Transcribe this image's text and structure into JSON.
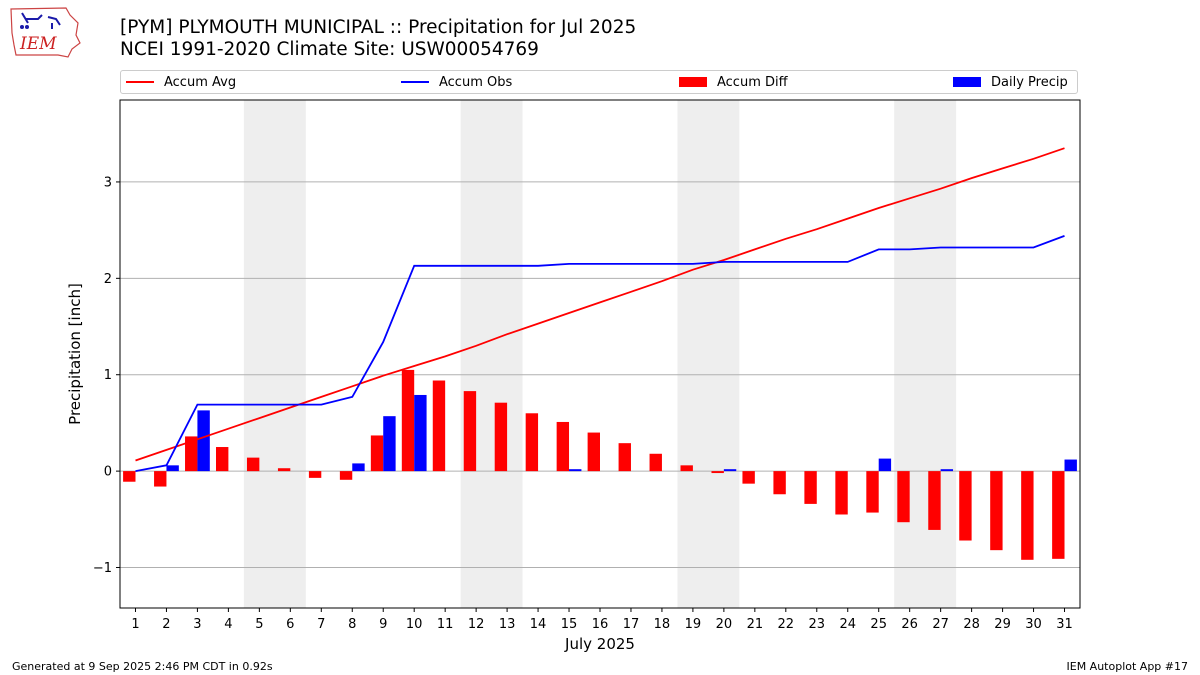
{
  "header": {
    "title_line1": "[PYM] PLYMOUTH MUNICIPAL :: Precipitation for Jul 2025",
    "title_line2": "NCEI 1991-2020 Climate Site: USW00054769"
  },
  "logo": {
    "text": "IEM",
    "color": "#cc2222"
  },
  "legend": {
    "placement": "top, above plot",
    "items": [
      {
        "label": "Accum Avg",
        "kind": "line",
        "color": "#ff0000"
      },
      {
        "label": "Accum Obs",
        "kind": "line",
        "color": "#0000ff"
      },
      {
        "label": "Accum Diff",
        "kind": "bar",
        "color": "#ff0000"
      },
      {
        "label": "Daily Precip",
        "kind": "bar",
        "color": "#0000ff"
      }
    ]
  },
  "footer": {
    "left": "Generated at 9 Sep 2025 2:46 PM CDT in 0.92s",
    "right": "IEM Autoplot App #17"
  },
  "chart_data": {
    "type": "bar",
    "title": "[PYM] PLYMOUTH MUNICIPAL :: Precipitation for Jul 2025",
    "xlabel": "July 2025",
    "ylabel": "Precipitation [inch]",
    "x": [
      1,
      2,
      3,
      4,
      5,
      6,
      7,
      8,
      9,
      10,
      11,
      12,
      13,
      14,
      15,
      16,
      17,
      18,
      19,
      20,
      21,
      22,
      23,
      24,
      25,
      26,
      27,
      28,
      29,
      30,
      31
    ],
    "ylim": [
      -1.42,
      3.85
    ],
    "yticks": [
      -1,
      0,
      1,
      2,
      3
    ],
    "ytick_labels": [
      "−1",
      "0",
      "1",
      "2",
      "3"
    ],
    "grid": "horizontal",
    "weekend_shading": [
      [
        5,
        6
      ],
      [
        12,
        13
      ],
      [
        19,
        20
      ],
      [
        26,
        27
      ]
    ],
    "series": [
      {
        "name": "Accum Avg",
        "kind": "line",
        "color": "#ff0000",
        "values": [
          0.11,
          0.22,
          0.33,
          0.44,
          0.55,
          0.66,
          0.77,
          0.88,
          0.99,
          1.09,
          1.19,
          1.3,
          1.42,
          1.53,
          1.64,
          1.75,
          1.86,
          1.97,
          2.09,
          2.19,
          2.3,
          2.41,
          2.51,
          2.62,
          2.73,
          2.83,
          2.93,
          3.04,
          3.14,
          3.24,
          3.35
        ]
      },
      {
        "name": "Accum Obs",
        "kind": "line",
        "color": "#0000ff",
        "values": [
          0.0,
          0.06,
          0.69,
          0.69,
          0.69,
          0.69,
          0.69,
          0.77,
          1.34,
          2.13,
          2.13,
          2.13,
          2.13,
          2.13,
          2.15,
          2.15,
          2.15,
          2.15,
          2.15,
          2.17,
          2.17,
          2.17,
          2.17,
          2.17,
          2.3,
          2.3,
          2.32,
          2.32,
          2.32,
          2.32,
          2.44
        ]
      },
      {
        "name": "Accum Diff",
        "kind": "bar",
        "color": "#ff0000",
        "values": [
          -0.11,
          -0.16,
          0.36,
          0.25,
          0.14,
          0.03,
          -0.07,
          -0.09,
          0.37,
          1.05,
          0.94,
          0.83,
          0.71,
          0.6,
          0.51,
          0.4,
          0.29,
          0.18,
          0.06,
          -0.02,
          -0.13,
          -0.24,
          -0.34,
          -0.45,
          -0.43,
          -0.53,
          -0.61,
          -0.72,
          -0.82,
          -0.92,
          -0.91
        ]
      },
      {
        "name": "Daily Precip",
        "kind": "bar",
        "color": "#0000ff",
        "values": [
          0.0,
          0.06,
          0.63,
          0.0,
          0.0,
          0.0,
          0.0,
          0.08,
          0.57,
          0.79,
          0.0,
          0.0,
          0.0,
          0.0,
          0.02,
          0.0,
          0.0,
          0.0,
          0.0,
          0.02,
          0.0,
          0.0,
          0.0,
          0.0,
          0.13,
          0.0,
          0.02,
          0.0,
          0.0,
          0.0,
          0.12
        ]
      }
    ]
  }
}
